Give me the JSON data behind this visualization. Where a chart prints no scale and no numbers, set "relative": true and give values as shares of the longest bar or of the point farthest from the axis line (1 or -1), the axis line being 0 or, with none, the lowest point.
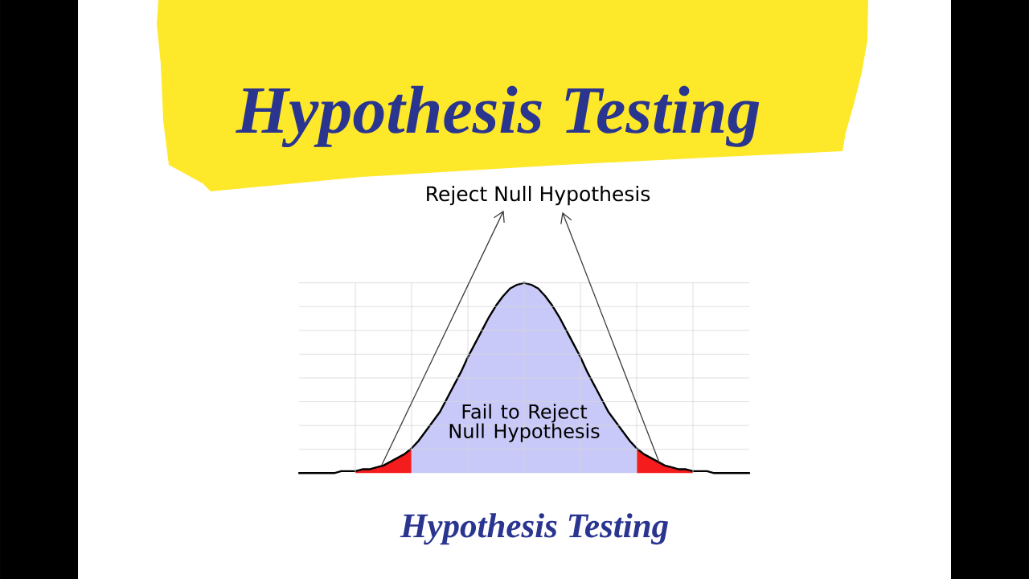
{
  "chart_data": {
    "type": "area",
    "title": "Hypothesis Testing",
    "annotations": [
      "Reject Null Hypothesis",
      "Fail to Reject Null Hypothesis",
      "Hypothesis Testing"
    ],
    "categories": [
      null,
      null,
      null,
      null,
      null,
      null,
      null,
      null,
      null,
      null,
      null,
      null,
      null,
      null,
      null,
      null,
      null,
      null,
      null,
      null,
      null,
      null,
      null,
      null,
      null,
      null,
      null,
      null,
      null,
      null,
      null,
      null,
      null,
      null,
      null,
      null,
      null,
      null,
      null,
      null,
      null,
      null,
      null,
      null,
      null,
      null,
      null,
      null,
      null,
      null,
      null,
      null,
      null,
      null,
      null,
      null,
      null,
      null,
      null,
      null,
      null,
      null,
      null,
      null,
      null
    ],
    "relative": true,
    "grid": true,
    "series": [
      {
        "color": "#c9c9f9",
        "values": [
          null,
          null,
          null,
          null,
          null,
          null,
          null,
          null,
          null,
          null,
          null,
          null,
          null,
          null,
          null,
          null,
          0.13,
          0.17,
          0.22,
          0.27,
          0.32,
          0.39,
          0.46,
          0.53,
          0.61,
          0.68,
          0.75,
          0.82,
          0.88,
          0.93,
          0.97,
          0.99,
          1,
          0.99,
          0.97,
          0.93,
          0.88,
          0.82,
          0.75,
          0.68,
          0.61,
          0.53,
          0.46,
          0.39,
          0.32,
          0.27,
          0.22,
          0.17,
          0.13,
          null,
          null,
          null,
          null,
          null,
          null,
          null,
          null,
          null,
          null,
          null,
          null,
          null,
          null,
          null,
          null
        ]
      },
      {
        "color": "#f41c1c",
        "values": [
          null,
          null,
          null,
          null,
          null,
          null,
          null,
          null,
          0.01,
          0.02,
          0.02,
          0.03,
          0.04,
          0.06,
          0.08,
          0.1,
          0.13,
          null,
          null,
          null,
          null,
          null,
          null,
          null,
          null,
          null,
          null,
          null,
          null,
          null,
          null,
          null,
          null,
          null,
          null,
          null,
          null,
          null,
          null,
          null,
          null,
          null,
          null,
          null,
          null,
          null,
          null,
          null,
          null,
          null,
          null,
          null,
          null,
          null,
          null,
          null,
          null,
          null,
          null,
          null,
          null,
          null,
          null,
          null,
          null
        ]
      },
      {
        "color": "#f41c1c",
        "values": [
          null,
          null,
          null,
          null,
          null,
          null,
          null,
          null,
          null,
          null,
          null,
          null,
          null,
          null,
          null,
          null,
          null,
          null,
          null,
          null,
          null,
          null,
          null,
          null,
          null,
          null,
          null,
          null,
          null,
          null,
          null,
          null,
          null,
          null,
          null,
          null,
          null,
          null,
          null,
          null,
          null,
          null,
          null,
          null,
          null,
          null,
          null,
          null,
          0.13,
          0.1,
          0.08,
          0.06,
          0.04,
          0.03,
          0.02,
          0.02,
          0.01,
          null,
          null,
          null,
          null,
          null,
          null,
          null,
          null
        ]
      },
      {
        "type": "line",
        "color": "#000000",
        "values": [
          0,
          0,
          0,
          0,
          0,
          0,
          0.01,
          0.01,
          0.01,
          0.02,
          0.02,
          0.03,
          0.04,
          0.06,
          0.08,
          0.1,
          0.13,
          0.17,
          0.22,
          0.27,
          0.32,
          0.39,
          0.46,
          0.53,
          0.61,
          0.68,
          0.75,
          0.82,
          0.88,
          0.93,
          0.97,
          0.99,
          1,
          0.99,
          0.97,
          0.93,
          0.88,
          0.82,
          0.75,
          0.68,
          0.61,
          0.53,
          0.46,
          0.39,
          0.32,
          0.27,
          0.22,
          0.17,
          0.13,
          0.1,
          0.08,
          0.06,
          0.04,
          0.03,
          0.02,
          0.02,
          0.01,
          0.01,
          0.01,
          0,
          0,
          0,
          0,
          0,
          0
        ]
      }
    ]
  }
}
